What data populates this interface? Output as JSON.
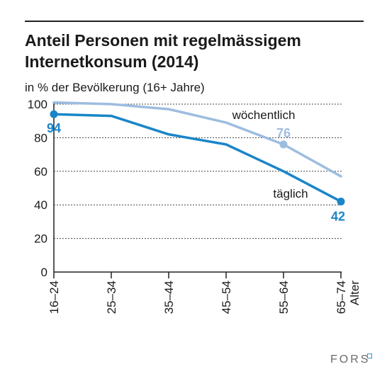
{
  "title": "Anteil Personen mit regelmässigem Internetkonsum (2014)",
  "subtitle": "in % der Bevölkerung (16+ Jahre)",
  "logo": "FORS",
  "colors": {
    "daily": "#1a85c8",
    "weekly": "#9dbde0",
    "grid": "#444444",
    "axis": "#222222"
  },
  "chart_data": {
    "type": "line",
    "categories": [
      "16–24",
      "25–34",
      "35–44",
      "45–54",
      "55–64",
      "65–74"
    ],
    "xlabel": "Alter",
    "ylabel": "",
    "ylim": [
      0,
      100
    ],
    "yticks": [
      0,
      20,
      40,
      60,
      80,
      100
    ],
    "ytick_labels": [
      "0",
      "20",
      "40",
      "60",
      "80",
      "100"
    ],
    "grid": true,
    "series": [
      {
        "name": "wöchentlich",
        "values": [
          101,
          100,
          97,
          89,
          76,
          57
        ],
        "color": "#9dbde0",
        "data_labels": [
          {
            "index": 4,
            "text": "76"
          }
        ]
      },
      {
        "name": "täglich",
        "values": [
          94,
          93,
          82,
          76,
          60,
          42
        ],
        "color": "#1a85c8",
        "data_labels": [
          {
            "index": 0,
            "text": "94"
          },
          {
            "index": 5,
            "text": "42"
          }
        ]
      }
    ]
  }
}
